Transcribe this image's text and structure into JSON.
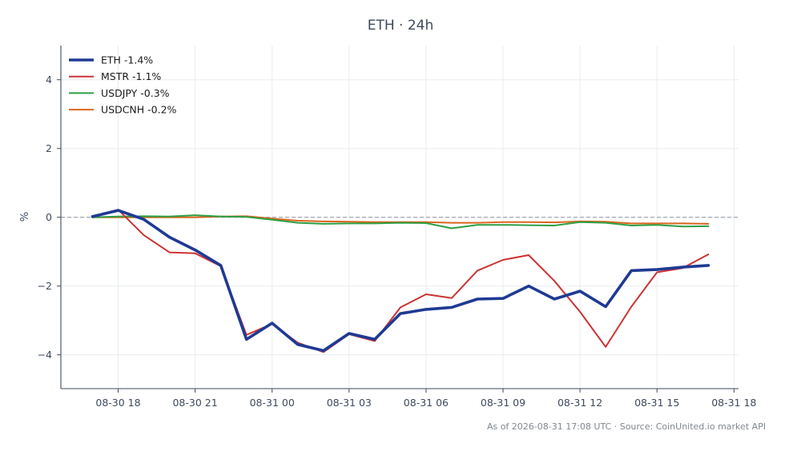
{
  "chart_data": {
    "type": "line",
    "title": "ETH · 24h",
    "ylabel": "%",
    "xlabel": "",
    "x_hours": [
      17,
      18,
      19,
      20,
      21,
      22,
      23,
      24,
      25,
      26,
      27,
      28,
      29,
      30,
      31,
      32,
      33,
      34,
      35,
      36,
      37,
      38,
      39,
      40,
      41
    ],
    "x_ticks": [
      "08-30 18",
      "08-30 21",
      "08-31 00",
      "08-31 03",
      "08-31 06",
      "08-31 09",
      "08-31 12",
      "08-31 15",
      "08-31 18"
    ],
    "y_ticks": [
      "4",
      "2",
      "0",
      "−2",
      "−4"
    ],
    "ylim": [
      -5,
      5
    ],
    "grid": true,
    "zero_line": true,
    "legend_placement": "top-left",
    "series": [
      {
        "name": "ETH -1.4%",
        "color": "#1f3a93",
        "width": 3.6,
        "values": [
          0.02,
          0.2,
          -0.06,
          -0.58,
          -0.95,
          -1.4,
          -3.55,
          -3.08,
          -3.7,
          -3.88,
          -3.38,
          -3.55,
          -2.8,
          -2.68,
          -2.62,
          -2.38,
          -2.36,
          -2.0,
          -2.38,
          -2.15,
          -2.6,
          -1.55,
          -1.52,
          -1.45,
          -1.4
        ]
      },
      {
        "name": "MSTR -1.1%",
        "color": "#cc3333",
        "width": 2,
        "values": [
          0.02,
          0.22,
          -0.52,
          -1.02,
          -1.05,
          -1.42,
          -3.42,
          -3.1,
          -3.65,
          -3.92,
          -3.4,
          -3.6,
          -2.62,
          -2.24,
          -2.35,
          -1.55,
          -1.24,
          -1.1,
          -1.85,
          -2.75,
          -3.77,
          -2.6,
          -1.6,
          -1.48,
          -1.08
        ]
      },
      {
        "name": "USDJPY -0.3%",
        "color": "#2e9e44",
        "width": 2,
        "values": [
          0.0,
          0.02,
          0.03,
          0.02,
          0.06,
          0.02,
          0.01,
          -0.07,
          -0.16,
          -0.19,
          -0.18,
          -0.18,
          -0.16,
          -0.17,
          -0.32,
          -0.22,
          -0.22,
          -0.23,
          -0.24,
          -0.14,
          -0.16,
          -0.24,
          -0.22,
          -0.27,
          -0.26
        ]
      },
      {
        "name": "USDCNH -0.2%",
        "color": "#d9661f",
        "width": 2,
        "values": [
          0.0,
          0.0,
          0.0,
          0.0,
          0.0,
          0.02,
          0.03,
          -0.04,
          -0.1,
          -0.12,
          -0.13,
          -0.14,
          -0.14,
          -0.14,
          -0.16,
          -0.16,
          -0.14,
          -0.14,
          -0.15,
          -0.12,
          -0.13,
          -0.18,
          -0.18,
          -0.18,
          -0.19
        ]
      }
    ]
  },
  "footer": "As of 2026-08-31 17:08 UTC · Source: CoinUnited.io market API"
}
